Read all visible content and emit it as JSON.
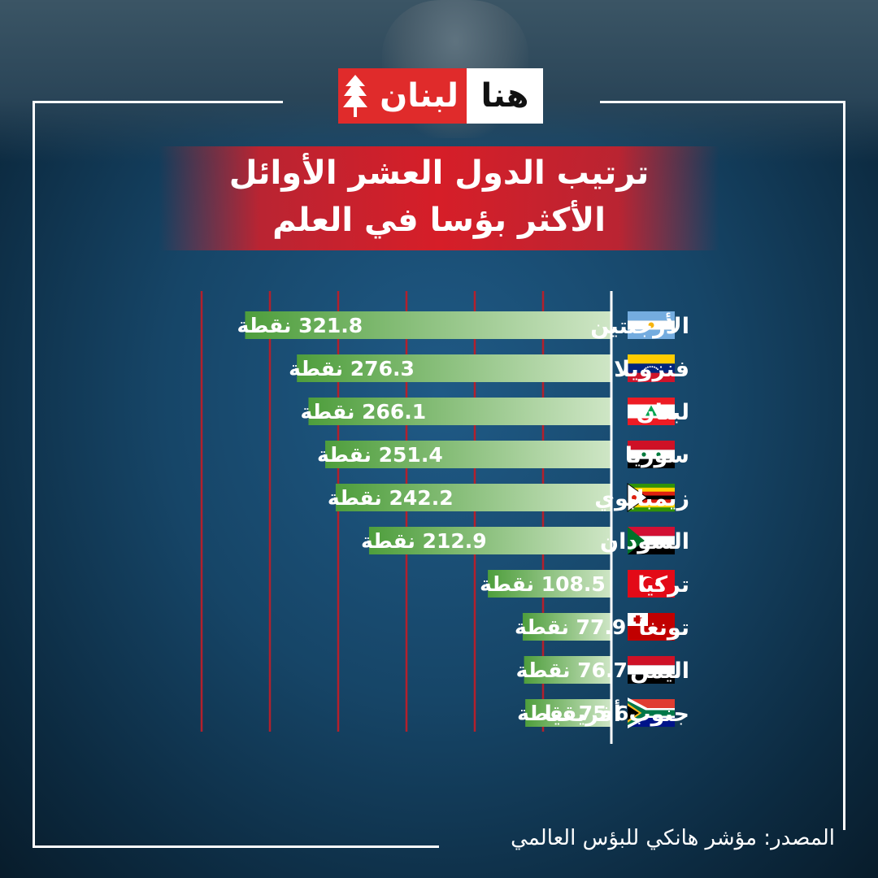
{
  "logo": {
    "part_red": "لبنان",
    "part_white": "هنا",
    "icon": "cedar-icon"
  },
  "title": {
    "line1": "ترتيب الدول العشر الأوائل",
    "line2": "الأكثر بؤسا في العلم"
  },
  "source": "المصدر: مؤشر هانكي للبؤس العالمي",
  "colors": {
    "accent_red": "#d61e28",
    "bar_dark_green": "#4e9e3c",
    "bar_light_green": "#cfe6c6",
    "gridline_red": "#b3202c"
  },
  "chart_data": {
    "type": "bar",
    "orientation": "horizontal",
    "unit": "نقطة",
    "categories": [
      "الأرجنتين",
      "فنزويلا",
      "لبنان",
      "سوريا",
      "زيمبابوي",
      "السودان",
      "تركيا",
      "تونغا",
      "اليمن",
      "جنوب أفريقيا"
    ],
    "values": [
      321.8,
      276.3,
      266.1,
      251.4,
      242.2,
      212.9,
      108.5,
      77.9,
      76.7,
      75.6
    ],
    "labels": [
      "321.8 نقطة",
      "276.3 نقطة",
      "266.1 نقطة",
      "251.4 نقطة",
      "242.2 نقطة",
      "212.9 نقطة",
      "108.5 نقطة",
      "77.9 نقطة",
      "76.7 نقطة",
      "75.6 نقطة"
    ],
    "flags": [
      "argentina-flag-icon",
      "venezuela-flag-icon",
      "lebanon-flag-icon",
      "syria-flag-icon",
      "zimbabwe-flag-icon",
      "sudan-flag-icon",
      "turkey-flag-icon",
      "tonga-flag-icon",
      "yemen-flag-icon",
      "south-africa-flag-icon"
    ],
    "xlim": [
      0,
      375
    ],
    "grid": true,
    "bars_extend": "right-to-left"
  }
}
